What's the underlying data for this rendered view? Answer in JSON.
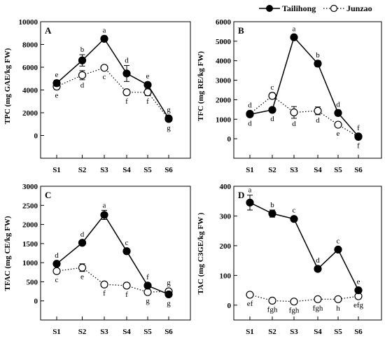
{
  "legend": {
    "series": [
      {
        "name": "Tailihong",
        "marker": "filled-circle",
        "line": "solid",
        "color": "#000000"
      },
      {
        "name": "Junzao",
        "marker": "open-circle",
        "line": "dotted",
        "color": "#000000"
      }
    ]
  },
  "chart_data": [
    {
      "panel": "A",
      "type": "line",
      "ylabel": "TPC (mg GAE/kg FW)",
      "categories": [
        "S1",
        "S2",
        "S3",
        "S4",
        "S5",
        "S6"
      ],
      "ylim": [
        -2000,
        10000
      ],
      "yticks": [
        0,
        2000,
        4000,
        6000,
        8000,
        10000
      ],
      "series": [
        {
          "name": "Tailihong",
          "values": [
            4600,
            6600,
            8500,
            5450,
            4450,
            1500
          ],
          "err": [
            250,
            500,
            250,
            700,
            150,
            150
          ],
          "letters": [
            "e",
            "b",
            "a",
            "d",
            "e",
            "g"
          ]
        },
        {
          "name": "Junzao",
          "values": [
            4300,
            5300,
            5950,
            3800,
            3800,
            1450
          ],
          "err": [
            250,
            400,
            150,
            250,
            300,
            100
          ],
          "letters": [
            "e",
            "d",
            "c",
            "f",
            "f",
            "g"
          ]
        }
      ]
    },
    {
      "panel": "B",
      "type": "line",
      "ylabel": "TFC (mg RE/kg FW)",
      "categories": [
        "S1",
        "S2",
        "S3",
        "S4",
        "S5",
        "S6"
      ],
      "ylim": [
        -1000,
        6000
      ],
      "yticks": [
        0,
        1000,
        2000,
        3000,
        4000,
        5000,
        6000
      ],
      "series": [
        {
          "name": "Tailihong",
          "values": [
            1250,
            1480,
            5200,
            3850,
            1320,
            120
          ],
          "err": [
            50,
            70,
            120,
            150,
            150,
            30
          ],
          "letters": [
            "d",
            "d",
            "a",
            "b",
            "d",
            "f"
          ]
        },
        {
          "name": "Junzao",
          "values": [
            1280,
            2200,
            1350,
            1430,
            720,
            100
          ],
          "err": [
            100,
            150,
            300,
            200,
            100,
            30
          ],
          "letters": [
            "d",
            "c",
            "d",
            "d",
            "e",
            "f"
          ]
        }
      ]
    },
    {
      "panel": "C",
      "type": "line",
      "ylabel": "TFAC (mg CE/kg FW)",
      "categories": [
        "S1",
        "S2",
        "S3",
        "S4",
        "S5",
        "S6"
      ],
      "ylim": [
        -500,
        3000
      ],
      "yticks": [
        0,
        500,
        1000,
        1500,
        2000,
        2500,
        3000
      ],
      "series": [
        {
          "name": "Tailihong",
          "values": [
            970,
            1520,
            2250,
            1300,
            400,
            170
          ],
          "err": [
            40,
            50,
            120,
            70,
            50,
            30
          ],
          "letters": [
            "d",
            "d",
            "a",
            "c",
            "f",
            "g"
          ]
        },
        {
          "name": "Junzao",
          "values": [
            780,
            870,
            430,
            400,
            230,
            250
          ],
          "err": [
            60,
            100,
            40,
            30,
            50,
            40
          ],
          "letters": [
            "c",
            "e",
            "f",
            "f",
            "g",
            "g"
          ]
        }
      ]
    },
    {
      "panel": "D",
      "type": "line",
      "ylabel": "TAC (mg C3GE/kg FW )",
      "categories": [
        "S1",
        "S2",
        "S3",
        "S4",
        "S5",
        "S6"
      ],
      "ylim": [
        -50,
        400
      ],
      "yticks": [
        0,
        100,
        200,
        300,
        400
      ],
      "series": [
        {
          "name": "Tailihong",
          "values": [
            345,
            308,
            290,
            122,
            187,
            50
          ],
          "err": [
            25,
            12,
            6,
            5,
            6,
            6
          ],
          "letters": [
            "a",
            "b",
            "c",
            "d",
            "c",
            "e"
          ]
        },
        {
          "name": "Junzao",
          "values": [
            35,
            15,
            12,
            20,
            20,
            30
          ],
          "err": [
            4,
            4,
            3,
            4,
            3,
            5
          ],
          "letters": [
            "ef",
            "fgh",
            "fgh",
            "fgh",
            "h",
            "efg"
          ]
        }
      ]
    }
  ]
}
